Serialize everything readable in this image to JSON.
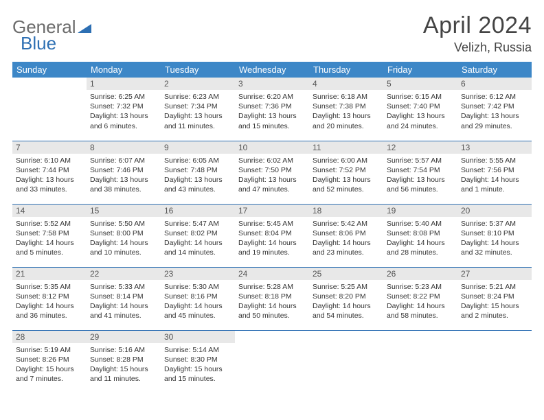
{
  "brand": {
    "part1": "General",
    "part2": "Blue"
  },
  "title": "April 2024",
  "location": "Velizh, Russia",
  "colors": {
    "header_bg": "#3d87c7",
    "border": "#2d6fb3",
    "daynum_bg": "#e8e8e8",
    "text": "#333333",
    "logo_gray": "#6b6b6b",
    "logo_blue": "#2d6fb3",
    "background": "#ffffff"
  },
  "typography": {
    "month_title_fontsize": 34,
    "location_fontsize": 18,
    "header_fontsize": 13,
    "daynum_fontsize": 12,
    "body_fontsize": 10.5
  },
  "layout": {
    "columns": 7,
    "rows": 5,
    "first_weekday_offset": 1
  },
  "weekdays": [
    "Sunday",
    "Monday",
    "Tuesday",
    "Wednesday",
    "Thursday",
    "Friday",
    "Saturday"
  ],
  "days": [
    {
      "n": 1,
      "sunrise": "6:25 AM",
      "sunset": "7:32 PM",
      "daylight": "13 hours and 6 minutes."
    },
    {
      "n": 2,
      "sunrise": "6:23 AM",
      "sunset": "7:34 PM",
      "daylight": "13 hours and 11 minutes."
    },
    {
      "n": 3,
      "sunrise": "6:20 AM",
      "sunset": "7:36 PM",
      "daylight": "13 hours and 15 minutes."
    },
    {
      "n": 4,
      "sunrise": "6:18 AM",
      "sunset": "7:38 PM",
      "daylight": "13 hours and 20 minutes."
    },
    {
      "n": 5,
      "sunrise": "6:15 AM",
      "sunset": "7:40 PM",
      "daylight": "13 hours and 24 minutes."
    },
    {
      "n": 6,
      "sunrise": "6:12 AM",
      "sunset": "7:42 PM",
      "daylight": "13 hours and 29 minutes."
    },
    {
      "n": 7,
      "sunrise": "6:10 AM",
      "sunset": "7:44 PM",
      "daylight": "13 hours and 33 minutes."
    },
    {
      "n": 8,
      "sunrise": "6:07 AM",
      "sunset": "7:46 PM",
      "daylight": "13 hours and 38 minutes."
    },
    {
      "n": 9,
      "sunrise": "6:05 AM",
      "sunset": "7:48 PM",
      "daylight": "13 hours and 43 minutes."
    },
    {
      "n": 10,
      "sunrise": "6:02 AM",
      "sunset": "7:50 PM",
      "daylight": "13 hours and 47 minutes."
    },
    {
      "n": 11,
      "sunrise": "6:00 AM",
      "sunset": "7:52 PM",
      "daylight": "13 hours and 52 minutes."
    },
    {
      "n": 12,
      "sunrise": "5:57 AM",
      "sunset": "7:54 PM",
      "daylight": "13 hours and 56 minutes."
    },
    {
      "n": 13,
      "sunrise": "5:55 AM",
      "sunset": "7:56 PM",
      "daylight": "14 hours and 1 minute."
    },
    {
      "n": 14,
      "sunrise": "5:52 AM",
      "sunset": "7:58 PM",
      "daylight": "14 hours and 5 minutes."
    },
    {
      "n": 15,
      "sunrise": "5:50 AM",
      "sunset": "8:00 PM",
      "daylight": "14 hours and 10 minutes."
    },
    {
      "n": 16,
      "sunrise": "5:47 AM",
      "sunset": "8:02 PM",
      "daylight": "14 hours and 14 minutes."
    },
    {
      "n": 17,
      "sunrise": "5:45 AM",
      "sunset": "8:04 PM",
      "daylight": "14 hours and 19 minutes."
    },
    {
      "n": 18,
      "sunrise": "5:42 AM",
      "sunset": "8:06 PM",
      "daylight": "14 hours and 23 minutes."
    },
    {
      "n": 19,
      "sunrise": "5:40 AM",
      "sunset": "8:08 PM",
      "daylight": "14 hours and 28 minutes."
    },
    {
      "n": 20,
      "sunrise": "5:37 AM",
      "sunset": "8:10 PM",
      "daylight": "14 hours and 32 minutes."
    },
    {
      "n": 21,
      "sunrise": "5:35 AM",
      "sunset": "8:12 PM",
      "daylight": "14 hours and 36 minutes."
    },
    {
      "n": 22,
      "sunrise": "5:33 AM",
      "sunset": "8:14 PM",
      "daylight": "14 hours and 41 minutes."
    },
    {
      "n": 23,
      "sunrise": "5:30 AM",
      "sunset": "8:16 PM",
      "daylight": "14 hours and 45 minutes."
    },
    {
      "n": 24,
      "sunrise": "5:28 AM",
      "sunset": "8:18 PM",
      "daylight": "14 hours and 50 minutes."
    },
    {
      "n": 25,
      "sunrise": "5:25 AM",
      "sunset": "8:20 PM",
      "daylight": "14 hours and 54 minutes."
    },
    {
      "n": 26,
      "sunrise": "5:23 AM",
      "sunset": "8:22 PM",
      "daylight": "14 hours and 58 minutes."
    },
    {
      "n": 27,
      "sunrise": "5:21 AM",
      "sunset": "8:24 PM",
      "daylight": "15 hours and 2 minutes."
    },
    {
      "n": 28,
      "sunrise": "5:19 AM",
      "sunset": "8:26 PM",
      "daylight": "15 hours and 7 minutes."
    },
    {
      "n": 29,
      "sunrise": "5:16 AM",
      "sunset": "8:28 PM",
      "daylight": "15 hours and 11 minutes."
    },
    {
      "n": 30,
      "sunrise": "5:14 AM",
      "sunset": "8:30 PM",
      "daylight": "15 hours and 15 minutes."
    }
  ],
  "labels": {
    "sunrise": "Sunrise:",
    "sunset": "Sunset:",
    "daylight": "Daylight:"
  }
}
